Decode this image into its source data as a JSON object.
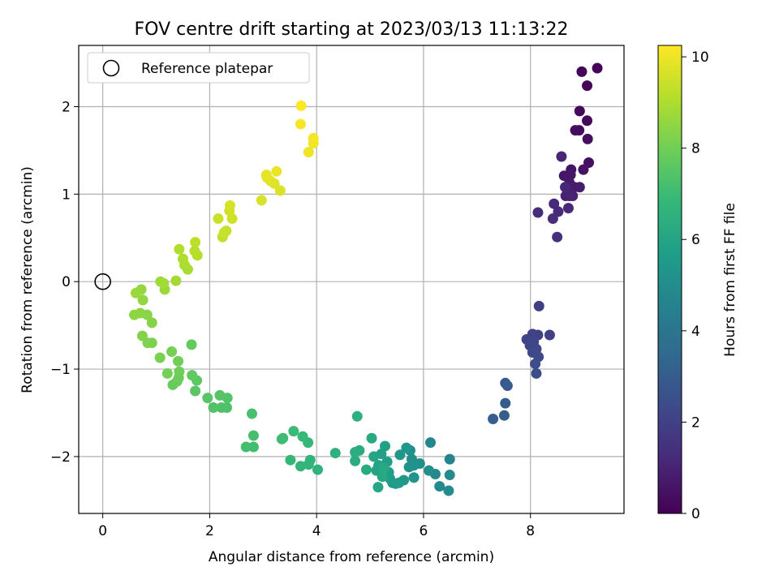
{
  "chart_data": {
    "type": "scatter",
    "title": "FOV centre drift starting at 2023/03/13 11:13:22",
    "xlabel": "Angular distance from reference (arcmin)",
    "ylabel": "Rotation from reference (arcmin)",
    "xlim": [
      -0.45,
      9.75
    ],
    "ylim": [
      -2.65,
      2.7
    ],
    "xticks": [
      0,
      2,
      4,
      6,
      8
    ],
    "yticks": [
      -2,
      -1,
      0,
      1,
      2
    ],
    "xtick_labels": [
      "0",
      "2",
      "4",
      "6",
      "8"
    ],
    "ytick_labels": [
      "−2",
      "−1",
      "0",
      "1",
      "2"
    ],
    "grid": true,
    "legend": {
      "position": "top-left",
      "entries": [
        "Reference platepar"
      ]
    },
    "reference_point": {
      "name": "Reference platepar",
      "x": 0,
      "y": 0,
      "marker": "hollow-circle"
    },
    "colorbar": {
      "label": "Hours from first FF file",
      "min": 0,
      "max": 10.25,
      "ticks": [
        0,
        2,
        4,
        6,
        8,
        10
      ],
      "tick_labels": [
        "0",
        "2",
        "4",
        "6",
        "8",
        "10"
      ],
      "colormap": "viridis"
    },
    "colormap_stops": [
      "#440154",
      "#482878",
      "#3e4989",
      "#31688e",
      "#26828e",
      "#1f9e89",
      "#35b779",
      "#6ece58",
      "#b5de2b",
      "#fde725"
    ],
    "series": [
      {
        "points": [
          [
            9.25,
            2.44,
            0.05
          ],
          [
            8.96,
            2.4,
            0.1
          ],
          [
            9.06,
            2.24,
            0.15
          ],
          [
            8.92,
            1.95,
            0.2
          ],
          [
            9.06,
            1.84,
            0.25
          ],
          [
            8.91,
            1.73,
            0.3
          ],
          [
            8.84,
            1.73,
            0.35
          ],
          [
            9.07,
            1.63,
            0.4
          ],
          [
            9.09,
            1.36,
            0.45
          ],
          [
            8.99,
            1.28,
            0.5
          ],
          [
            8.76,
            1.28,
            0.55
          ],
          [
            8.75,
            1.22,
            0.6
          ],
          [
            8.63,
            1.21,
            0.65
          ],
          [
            8.73,
            1.13,
            0.7
          ],
          [
            8.82,
            1.08,
            0.75
          ],
          [
            8.92,
            1.08,
            0.8
          ],
          [
            8.69,
            1.05,
            0.85
          ],
          [
            8.73,
            0.98,
            0.9
          ],
          [
            8.66,
            0.98,
            0.95
          ],
          [
            8.79,
            0.98,
            1.0
          ],
          [
            8.58,
            1.43,
            1.05
          ],
          [
            8.65,
            1.08,
            1.1
          ],
          [
            8.71,
            0.84,
            1.15
          ],
          [
            8.44,
            0.89,
            1.2
          ],
          [
            8.52,
            0.8,
            1.25
          ],
          [
            8.42,
            0.72,
            1.3
          ],
          [
            8.14,
            0.79,
            1.35
          ],
          [
            8.5,
            0.51,
            1.4
          ],
          [
            8.16,
            -0.28,
            1.9
          ],
          [
            8.36,
            -0.61,
            1.95
          ],
          [
            8.14,
            -0.61,
            2.0
          ],
          [
            8.04,
            -0.6,
            2.05
          ],
          [
            7.93,
            -0.66,
            2.1
          ],
          [
            8.06,
            -0.69,
            2.15
          ],
          [
            7.99,
            -0.73,
            2.2
          ],
          [
            8.11,
            -0.77,
            2.25
          ],
          [
            8.04,
            -0.81,
            2.3
          ],
          [
            8.15,
            -0.86,
            2.35
          ],
          [
            8.09,
            -0.94,
            2.4
          ],
          [
            8.11,
            -1.05,
            2.45
          ],
          [
            7.53,
            -1.16,
            2.9
          ],
          [
            7.57,
            -1.19,
            2.95
          ],
          [
            7.53,
            -1.39,
            3.0
          ],
          [
            7.51,
            -1.53,
            3.05
          ],
          [
            7.3,
            -1.57,
            3.1
          ],
          [
            6.49,
            -2.03,
            4.6
          ],
          [
            6.13,
            -1.84,
            4.7
          ],
          [
            6.22,
            -2.2,
            4.8
          ],
          [
            6.3,
            -2.34,
            4.85
          ],
          [
            6.49,
            -2.21,
            4.9
          ],
          [
            6.47,
            -2.39,
            4.95
          ],
          [
            5.93,
            -2.08,
            5.0
          ],
          [
            6.1,
            -2.16,
            5.05
          ],
          [
            5.75,
            -1.93,
            5.1
          ],
          [
            5.78,
            -2.03,
            5.15
          ],
          [
            5.82,
            -2.1,
            5.2
          ],
          [
            5.73,
            -2.12,
            5.25
          ],
          [
            5.82,
            -2.24,
            5.3
          ],
          [
            5.68,
            -1.9,
            5.35
          ],
          [
            5.56,
            -1.98,
            5.4
          ],
          [
            5.63,
            -2.27,
            5.45
          ],
          [
            5.54,
            -2.3,
            5.5
          ],
          [
            5.42,
            -2.3,
            5.55
          ],
          [
            5.48,
            -2.31,
            5.6
          ],
          [
            5.37,
            -2.25,
            5.65
          ],
          [
            5.35,
            -2.18,
            5.7
          ],
          [
            5.32,
            -2.06,
            5.75
          ],
          [
            5.28,
            -1.88,
            5.8
          ],
          [
            5.21,
            -1.97,
            5.85
          ],
          [
            5.16,
            -2.1,
            5.9
          ],
          [
            5.12,
            -2.16,
            5.95
          ],
          [
            5.07,
            -2.0,
            6.0
          ],
          [
            5.15,
            -2.35,
            6.05
          ],
          [
            5.23,
            -2.23,
            6.1
          ],
          [
            5.26,
            -2.13,
            6.15
          ],
          [
            5.03,
            -1.79,
            6.2
          ],
          [
            4.93,
            -2.15,
            6.25
          ],
          [
            4.8,
            -1.93,
            6.3
          ],
          [
            4.72,
            -1.95,
            6.35
          ],
          [
            4.72,
            -2.05,
            6.4
          ],
          [
            4.76,
            -1.54,
            6.45
          ],
          [
            4.35,
            -1.96,
            6.5
          ],
          [
            4.02,
            -2.15,
            6.6
          ],
          [
            3.88,
            -2.04,
            6.65
          ],
          [
            3.85,
            -2.09,
            6.7
          ],
          [
            3.7,
            -2.11,
            6.75
          ],
          [
            3.51,
            -2.04,
            6.8
          ],
          [
            3.84,
            -1.84,
            6.85
          ],
          [
            3.74,
            -1.77,
            6.9
          ],
          [
            3.57,
            -1.71,
            6.95
          ],
          [
            3.37,
            -1.79,
            7.0
          ],
          [
            3.35,
            -1.8,
            7.05
          ],
          [
            2.82,
            -1.89,
            7.1
          ],
          [
            2.68,
            -1.89,
            7.15
          ],
          [
            2.82,
            -1.76,
            7.2
          ],
          [
            2.79,
            -1.51,
            7.25
          ],
          [
            2.32,
            -1.44,
            7.3
          ],
          [
            2.22,
            -1.44,
            7.35
          ],
          [
            2.07,
            -1.44,
            7.4
          ],
          [
            2.33,
            -1.33,
            7.45
          ],
          [
            2.19,
            -1.3,
            7.5
          ],
          [
            1.96,
            -1.33,
            7.55
          ],
          [
            1.73,
            -1.25,
            7.6
          ],
          [
            1.76,
            -1.13,
            7.65
          ],
          [
            1.67,
            -1.07,
            7.7
          ],
          [
            1.66,
            -0.72,
            7.75
          ],
          [
            1.31,
            -1.18,
            7.8
          ],
          [
            1.39,
            -1.14,
            7.85
          ],
          [
            1.42,
            -1.1,
            7.9
          ],
          [
            1.43,
            -1.03,
            7.95
          ],
          [
            1.41,
            -0.91,
            8.0
          ],
          [
            1.21,
            -1.05,
            8.05
          ],
          [
            1.29,
            -0.8,
            8.1
          ],
          [
            1.07,
            -0.87,
            8.15
          ],
          [
            0.92,
            -0.7,
            8.2
          ],
          [
            0.84,
            -0.7,
            8.25
          ],
          [
            0.74,
            -0.62,
            8.3
          ],
          [
            0.92,
            -0.47,
            8.35
          ],
          [
            0.83,
            -0.38,
            8.4
          ],
          [
            0.7,
            -0.36,
            8.45
          ],
          [
            0.59,
            -0.38,
            8.5
          ],
          [
            0.75,
            -0.21,
            8.55
          ],
          [
            0.72,
            -0.09,
            8.6
          ],
          [
            0.62,
            -0.13,
            8.65
          ],
          [
            1.16,
            -0.09,
            8.7
          ],
          [
            1.08,
            0.0,
            8.75
          ],
          [
            1.14,
            -0.02,
            8.8
          ],
          [
            1.37,
            0.01,
            8.85
          ],
          [
            1.59,
            0.14,
            8.9
          ],
          [
            1.53,
            0.19,
            8.95
          ],
          [
            1.5,
            0.26,
            9.0
          ],
          [
            1.43,
            0.37,
            9.05
          ],
          [
            1.77,
            0.3,
            9.1
          ],
          [
            1.72,
            0.35,
            9.15
          ],
          [
            1.73,
            0.45,
            9.2
          ],
          [
            2.24,
            0.51,
            9.3
          ],
          [
            2.31,
            0.58,
            9.35
          ],
          [
            2.27,
            0.56,
            9.4
          ],
          [
            2.16,
            0.72,
            9.45
          ],
          [
            2.42,
            0.72,
            9.5
          ],
          [
            2.37,
            0.81,
            9.55
          ],
          [
            2.38,
            0.87,
            9.6
          ],
          [
            2.97,
            0.93,
            9.65
          ],
          [
            3.32,
            1.04,
            9.7
          ],
          [
            3.21,
            1.12,
            9.75
          ],
          [
            3.14,
            1.15,
            9.8
          ],
          [
            3.07,
            1.19,
            9.85
          ],
          [
            3.06,
            1.22,
            9.9
          ],
          [
            3.25,
            1.26,
            9.95
          ],
          [
            3.85,
            1.48,
            10.0
          ],
          [
            3.94,
            1.58,
            10.05
          ],
          [
            3.94,
            1.64,
            10.1
          ],
          [
            3.7,
            1.8,
            10.15
          ],
          [
            3.71,
            2.01,
            10.2
          ]
        ]
      }
    ]
  }
}
